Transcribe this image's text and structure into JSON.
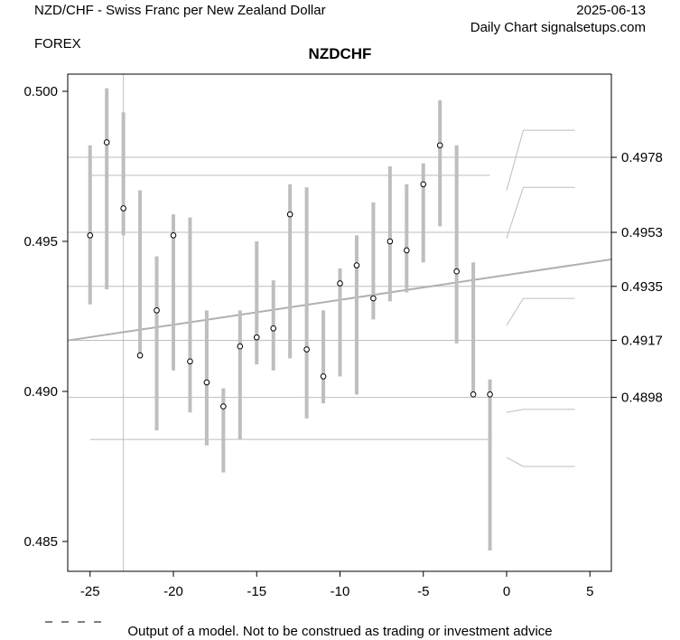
{
  "header": {
    "title": "NZD/CHF - Swiss Franc per New Zealand Dollar",
    "date": "2025-06-13",
    "source": "Daily Chart signalsetups.com",
    "category": "FOREX"
  },
  "footer": {
    "disclaimer": "Output of a model. Not to be construed as trading or investment advice"
  },
  "chart_data": {
    "type": "candlestick-range",
    "title": "NZDCHF",
    "xlim": [
      -26.3,
      6.3
    ],
    "ylim": [
      0.484,
      0.5006
    ],
    "x_ticks": [
      -25,
      -20,
      -15,
      -10,
      -5,
      0,
      5
    ],
    "x_tick_labels": [
      "-25",
      "-20",
      "-15",
      "-10",
      "-5",
      "0",
      "5"
    ],
    "y_ticks_left": [
      0.5,
      0.495,
      0.49,
      0.485
    ],
    "y_tick_labels_left": [
      "0.500",
      "0.495",
      "0.490",
      "0.485"
    ],
    "y_ticks_right": [
      0.4978,
      0.4953,
      0.4935,
      0.4917,
      0.4898
    ],
    "y_tick_labels_right": [
      "0.4978",
      "0.4953",
      "0.4935",
      "0.4917",
      "0.4898"
    ],
    "bars": [
      {
        "x": -25,
        "high": 0.4982,
        "low": 0.4929,
        "close": 0.4952
      },
      {
        "x": -24,
        "high": 0.5001,
        "low": 0.4934,
        "close": 0.4983
      },
      {
        "x": -23,
        "high": 0.4993,
        "low": 0.4952,
        "close": 0.4961
      },
      {
        "x": -22,
        "high": 0.4967,
        "low": 0.4911,
        "close": 0.4912
      },
      {
        "x": -21,
        "high": 0.4945,
        "low": 0.4887,
        "close": 0.4927
      },
      {
        "x": -20,
        "high": 0.4959,
        "low": 0.4907,
        "close": 0.4952
      },
      {
        "x": -19,
        "high": 0.4958,
        "low": 0.4893,
        "close": 0.491
      },
      {
        "x": -18,
        "high": 0.4927,
        "low": 0.4882,
        "close": 0.4903
      },
      {
        "x": -17,
        "high": 0.4901,
        "low": 0.4873,
        "close": 0.4895
      },
      {
        "x": -16,
        "high": 0.4927,
        "low": 0.4884,
        "close": 0.4915
      },
      {
        "x": -15,
        "high": 0.495,
        "low": 0.4909,
        "close": 0.4918
      },
      {
        "x": -14,
        "high": 0.4937,
        "low": 0.4907,
        "close": 0.4921
      },
      {
        "x": -13,
        "high": 0.4969,
        "low": 0.4911,
        "close": 0.4959
      },
      {
        "x": -12,
        "high": 0.4968,
        "low": 0.4891,
        "close": 0.4914
      },
      {
        "x": -11,
        "high": 0.4927,
        "low": 0.4896,
        "close": 0.4905
      },
      {
        "x": -10,
        "high": 0.4941,
        "low": 0.4905,
        "close": 0.4936
      },
      {
        "x": -9,
        "high": 0.4952,
        "low": 0.4899,
        "close": 0.4942
      },
      {
        "x": -8,
        "high": 0.4963,
        "low": 0.4924,
        "close": 0.4931
      },
      {
        "x": -7,
        "high": 0.4975,
        "low": 0.493,
        "close": 0.495
      },
      {
        "x": -6,
        "high": 0.4969,
        "low": 0.4933,
        "close": 0.4947
      },
      {
        "x": -5,
        "high": 0.4976,
        "low": 0.4943,
        "close": 0.4969
      },
      {
        "x": -4,
        "high": 0.4997,
        "low": 0.4955,
        "close": 0.4982
      },
      {
        "x": -3,
        "high": 0.4982,
        "low": 0.4916,
        "close": 0.494
      },
      {
        "x": -2,
        "high": 0.4943,
        "low": 0.4899,
        "close": 0.4899
      },
      {
        "x": -1,
        "high": 0.4904,
        "low": 0.4847,
        "close": 0.4899
      }
    ],
    "level_lines": [
      0.4978,
      0.4953,
      0.4935,
      0.4917,
      0.4898
    ],
    "range_lines": [
      {
        "y": 0.4972,
        "x_from": -25,
        "x_to": -1
      },
      {
        "y": 0.4884,
        "x_from": -25,
        "x_to": -1
      }
    ],
    "vertical_marker_x": -23,
    "trend_line": {
      "x": [
        -26.3,
        6.3
      ],
      "y": [
        0.4917,
        0.4944
      ]
    },
    "projections": [
      {
        "from": 0.4967,
        "to": 0.4987
      },
      {
        "from": 0.4951,
        "to": 0.4968
      },
      {
        "from": 0.4922,
        "to": 0.4931
      },
      {
        "from": 0.4893,
        "to": 0.4894
      },
      {
        "from": 0.4878,
        "to": 0.4875
      }
    ],
    "colors": {
      "bars": "#bebebe",
      "lines": "#bebebe",
      "axis": "#000000"
    }
  }
}
